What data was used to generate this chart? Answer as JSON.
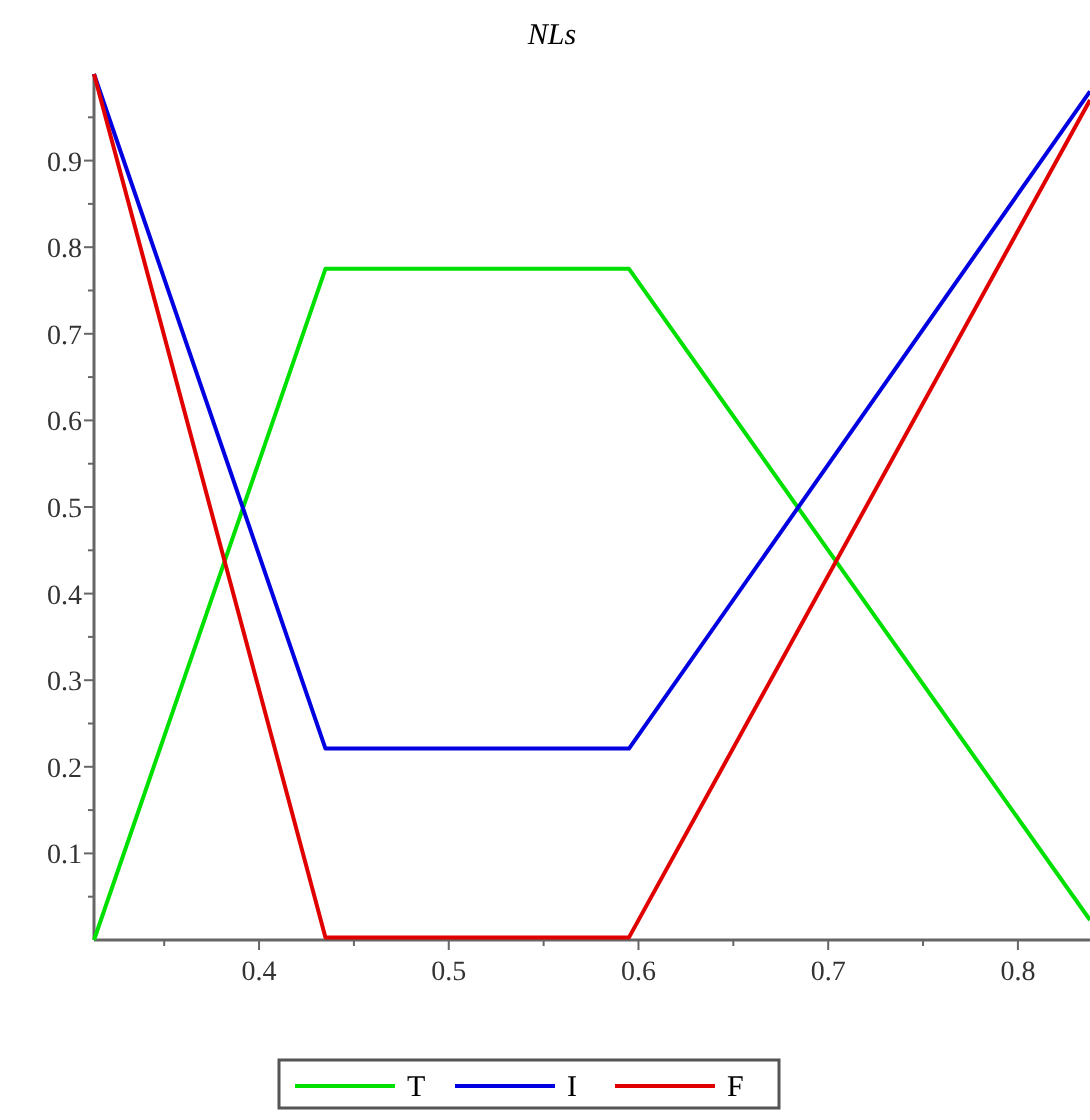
{
  "chart_data": {
    "type": "line",
    "title": "NLs",
    "xlim": [
      0.313,
      0.838
    ],
    "ylim": [
      0,
      1
    ],
    "xticks": [
      {
        "value": 0.35,
        "label": null
      },
      0.4,
      {
        "value": 0.45,
        "label": null
      },
      0.5,
      {
        "value": 0.55,
        "label": null
      },
      0.6,
      {
        "value": 0.65,
        "label": null
      },
      0.7,
      {
        "value": 0.75,
        "label": null
      },
      0.8
    ],
    "yticks": [
      {
        "value": 0.05,
        "label": null
      },
      0.1,
      {
        "value": 0.15,
        "label": null
      },
      0.2,
      {
        "value": 0.25,
        "label": null
      },
      0.3,
      {
        "value": 0.35,
        "label": null
      },
      0.4,
      {
        "value": 0.45,
        "label": null
      },
      0.5,
      {
        "value": 0.55,
        "label": null
      },
      0.6,
      {
        "value": 0.65,
        "label": null
      },
      0.7,
      {
        "value": 0.75,
        "label": null
      },
      0.8,
      {
        "value": 0.85,
        "label": null
      },
      0.9,
      {
        "value": 0.95,
        "label": null
      }
    ],
    "x": [
      0.313,
      0.435,
      0.595,
      0.838
    ],
    "series": [
      {
        "name": "T",
        "color": "#00e000",
        "values": [
          0,
          0.775,
          0.775,
          0.023
        ]
      },
      {
        "name": "I",
        "color": "#0000e0",
        "values": [
          1,
          0.221,
          0.221,
          0.98
        ]
      },
      {
        "name": "F",
        "color": "#e00000",
        "values": [
          1,
          0.003,
          0.003,
          0.97
        ]
      }
    ],
    "legend": "bottom",
    "grid": false,
    "marker": "none",
    "line_style": "solid"
  }
}
